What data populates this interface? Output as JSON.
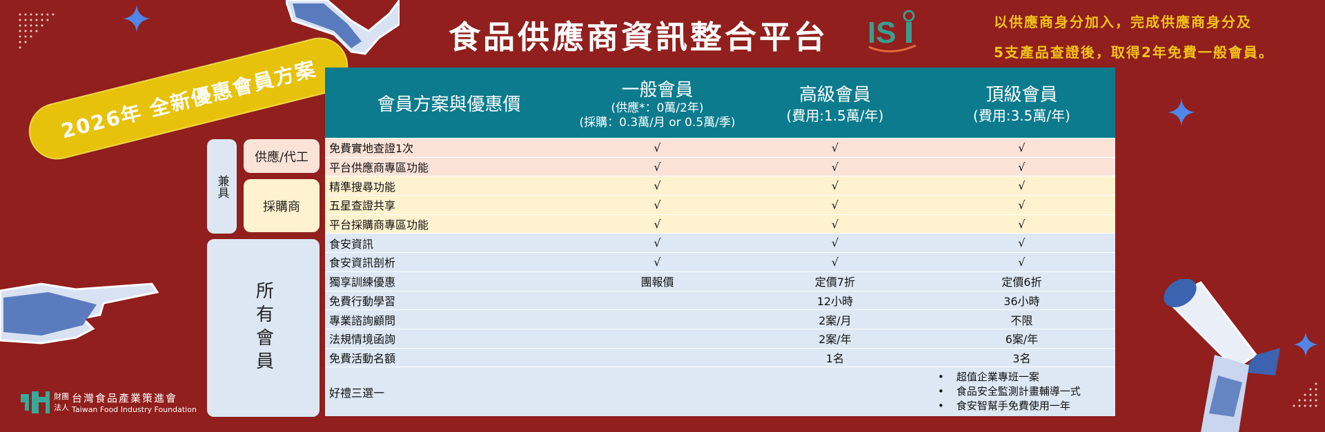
{
  "header": {
    "title": "食品供應商資訊整合平台",
    "logo_text": "ISi",
    "note_lines": [
      "以供應商身分加入，完成供應商身分及",
      "5支產品查證後，取得2年免費一般會員。"
    ]
  },
  "badge": "2026年 全新優惠會員方案",
  "side_labels": {
    "both": "兼具",
    "supplier": "供應/代工",
    "buyer": "採購商",
    "all": "所有會員"
  },
  "table": {
    "headers": [
      {
        "title": "會員方案與優惠價",
        "sub1": "",
        "sub2": ""
      },
      {
        "title": "一般會員",
        "sub1": "(供應*：0萬/2年)",
        "sub2": "(採購：0.3萬/月 or 0.5萬/季)"
      },
      {
        "title": "高級會員",
        "sub1": "(費用:1.5萬/年)",
        "sub2": ""
      },
      {
        "title": "頂級會員",
        "sub1": "(費用:3.5萬/年)",
        "sub2": ""
      }
    ],
    "rows": [
      {
        "feature": "免費實地查證1次",
        "general": "√",
        "advanced": "√",
        "premium": "√",
        "group": "supplier"
      },
      {
        "feature": "平台供應商專區功能",
        "general": "√",
        "advanced": "√",
        "premium": "√",
        "group": "supplier"
      },
      {
        "feature": "精準搜尋功能",
        "general": "√",
        "advanced": "√",
        "premium": "√",
        "group": "buyer"
      },
      {
        "feature": "五星查證共享",
        "general": "√",
        "advanced": "√",
        "premium": "√",
        "group": "buyer"
      },
      {
        "feature": "平台採購商專區功能",
        "general": "√",
        "advanced": "√",
        "premium": "√",
        "group": "buyer"
      },
      {
        "feature": "食安資訊",
        "general": "√",
        "advanced": "√",
        "premium": "√",
        "group": "all"
      },
      {
        "feature": "食安資訊剖析",
        "general": "√",
        "advanced": "√",
        "premium": "√",
        "group": "all"
      },
      {
        "feature": "獨享訓練優惠",
        "general": "團報價",
        "advanced": "定價7折",
        "premium": "定價6折",
        "group": "all"
      },
      {
        "feature": "免費行動學習",
        "general": "",
        "advanced": "12小時",
        "premium": "36小時",
        "group": "all"
      },
      {
        "feature": "專業諮詢顧問",
        "general": "",
        "advanced": "2案/月",
        "premium": "不限",
        "group": "all"
      },
      {
        "feature": "法規情境函詢",
        "general": "",
        "advanced": "2案/年",
        "premium": "6案/年",
        "group": "all"
      },
      {
        "feature": "免費活動名額",
        "general": "",
        "advanced": "1名",
        "premium": "3名",
        "group": "all"
      }
    ],
    "gift": {
      "feature": "好禮三選一",
      "premium_items": [
        "超值企業專班一案",
        "食品安全監測計畫輔導一式",
        "食安智幫手免費使用一年"
      ]
    }
  },
  "footer": {
    "org_prefix_1": "財團",
    "org_prefix_2": "法人",
    "org_name_zh": "台灣食品產業策進會",
    "org_name_en": "Taiwan Food Industry Foundation"
  },
  "colors": {
    "background": "#901f1d",
    "header": "#0b7b8d",
    "supplier_row": "#fbe3d8",
    "buyer_row": "#fff2cf",
    "all_row": "#dde8f4",
    "badge": "#e6c20a",
    "note": "#f3c21a",
    "star": "#4f86e8"
  },
  "icons": [
    "star-icon",
    "handshake-icon",
    "pointing-hand-icon",
    "megaphone-icon",
    "dot-grid-icon"
  ]
}
